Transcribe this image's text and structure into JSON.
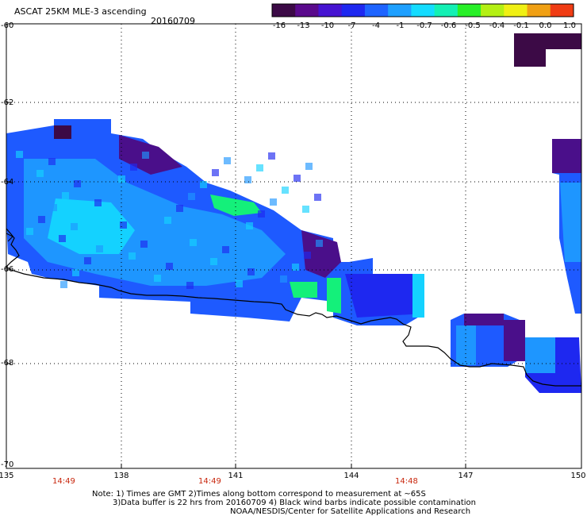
{
  "header": {
    "title": "ASCAT 25KM MLE-3 ascending",
    "date": "20160709"
  },
  "colorbar": {
    "ticks": [
      "-16",
      "-13",
      "-10",
      "-7",
      "-4",
      "-1",
      "-0.7",
      "-0.6",
      "-0.5",
      "-0.4",
      "-0.1",
      "0.0",
      "1.0"
    ],
    "colors": [
      "#3c0a46",
      "#5a0a8c",
      "#4614d2",
      "#1e28f0",
      "#1e64ff",
      "#1ea0ff",
      "#14dcff",
      "#14f0b4",
      "#28f028",
      "#b4f014",
      "#f0f014",
      "#f0a014",
      "#f03c14"
    ]
  },
  "axes": {
    "lat_labels": [
      "-60",
      "-62",
      "-64",
      "-66",
      "-68",
      "-70"
    ],
    "lon_labels": [
      "135",
      "138",
      "141",
      "144",
      "147",
      "150"
    ]
  },
  "times": [
    "14:49",
    "14:49",
    "14:48"
  ],
  "notes": {
    "line1": "Note: 1) Times are GMT 2)Times along bottom correspond to measurement at ~65S",
    "line2": "3)Data buffer is 22 hrs from 20160709 4) Black wind barbs indicate possible contamination",
    "line3": "NOAA/NESDIS/Center for Satellite Applications and Research"
  },
  "map_colors": {
    "deep_purple": "#3c0a46",
    "purple": "#4a0f8a",
    "blue": "#1e28f0",
    "mid_blue": "#1e5aff",
    "light_blue": "#1e96ff",
    "cyan": "#14d2ff",
    "green": "#14f07a",
    "coast": "#000000"
  }
}
